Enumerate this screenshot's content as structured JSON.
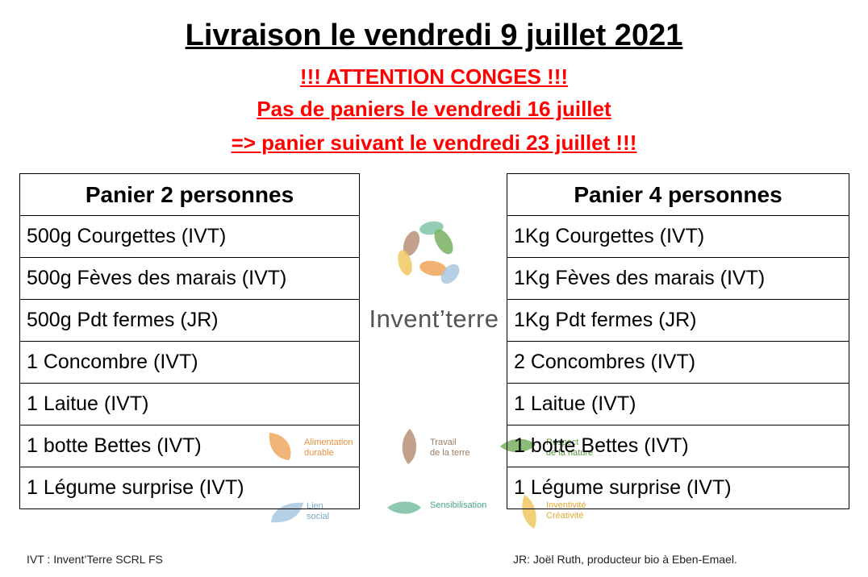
{
  "title": "Livraison le vendredi 9 juillet 2021",
  "warnings": [
    "!!! ATTENTION CONGES !!!",
    "Pas de paniers le vendredi 16 juillet",
    "=> panier suivant le vendredi 23 juillet !!!"
  ],
  "basket2": {
    "header": "Panier 2 personnes",
    "items": [
      "500g Courgettes (IVT)",
      "500g Fèves des marais (IVT)",
      "500g Pdt fermes (JR)",
      "1 Concombre (IVT)",
      "1 Laitue (IVT)",
      "1 botte Bettes (IVT)",
      "1 Légume surprise (IVT)"
    ]
  },
  "basket4": {
    "header": "Panier 4 personnes",
    "items": [
      "1Kg Courgettes (IVT)",
      "1Kg Fèves des marais (IVT)",
      "1Kg Pdt fermes (JR)",
      "2 Concombres (IVT)",
      "1 Laitue (IVT)",
      "1 botte Bettes (IVT)",
      "1 Légume surprise (IVT)"
    ]
  },
  "brand": "Invent’terre",
  "values": [
    {
      "label": "Alimentation\ndurable",
      "color": "#f0a860"
    },
    {
      "label": "Travail\nde la terre",
      "color": "#b89078"
    },
    {
      "label": "Respect\nde la nature",
      "color": "#78b060"
    },
    {
      "label": "Lien\nsocial",
      "color": "#a8c8e0"
    },
    {
      "label": "Sensibilisation",
      "color": "#78c0a0"
    },
    {
      "label": "Inventivité\nCréativité",
      "color": "#f0c860"
    }
  ],
  "footer": {
    "left": "IVT : Invent’Terre SCRL FS",
    "right": "JR: Joël Ruth, producteur bio à Eben-Emael."
  },
  "colors": {
    "warning": "#ff0000",
    "brand_text": "#555555"
  }
}
